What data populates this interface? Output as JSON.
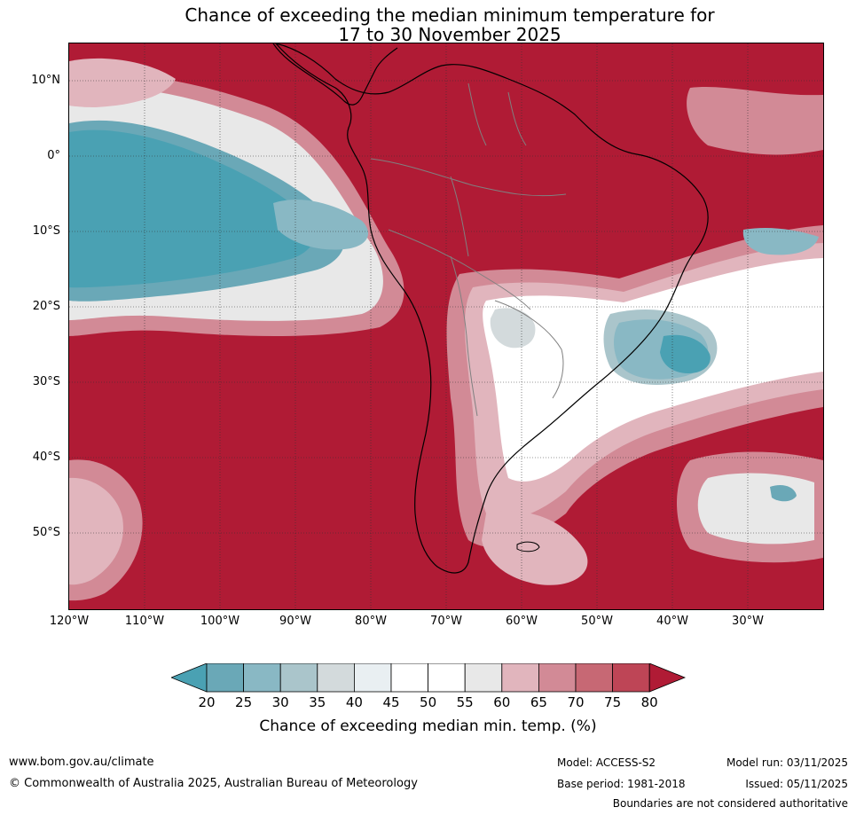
{
  "title": {
    "line1": "Chance of exceeding the median minimum temperature for",
    "line2": "17 to 30 November 2025"
  },
  "map": {
    "lat_labels": [
      "10°N",
      "0°",
      "10°S",
      "20°S",
      "30°S",
      "40°S",
      "50°S"
    ],
    "lon_labels": [
      "120°W",
      "110°W",
      "100°W",
      "90°W",
      "80°W",
      "70°W",
      "60°W",
      "50°W",
      "40°W",
      "30°W"
    ],
    "lat_values": [
      10,
      0,
      -10,
      -20,
      -30,
      -40,
      -50
    ],
    "lon_values": [
      -120,
      -110,
      -100,
      -90,
      -80,
      -70,
      -60,
      -50,
      -40,
      -30
    ],
    "colors": {
      "high": "#b01b35",
      "low": "#4aa1b3",
      "neutral": "#ffffff",
      "country_border": "#808080",
      "coast": "#000000"
    }
  },
  "colorbar": {
    "ticks": [
      "20",
      "25",
      "30",
      "35",
      "40",
      "45",
      "50",
      "55",
      "60",
      "65",
      "70",
      "75",
      "80"
    ],
    "colors": [
      "#4aa1b3",
      "#6aa8b7",
      "#89b8c4",
      "#aac5cb",
      "#d3dadc",
      "#e9eff2",
      "#ffffff",
      "#ffffff",
      "#e8e8e8",
      "#e1b5bd",
      "#d28a96",
      "#c76874",
      "#be4556",
      "#b01b35"
    ],
    "label": "Chance of exceeding median min. temp. (%)"
  },
  "footer": {
    "website": "www.bom.gov.au/climate",
    "copyright": "© Commonwealth of Australia 2025, Australian Bureau of Meteorology",
    "model": "Model: ACCESS-S2",
    "base_period": "Base period: 1981-2018",
    "model_run": "Model run: 03/11/2025",
    "issued": "Issued: 05/11/2025",
    "disclaimer": "Boundaries are not considered authoritative"
  }
}
